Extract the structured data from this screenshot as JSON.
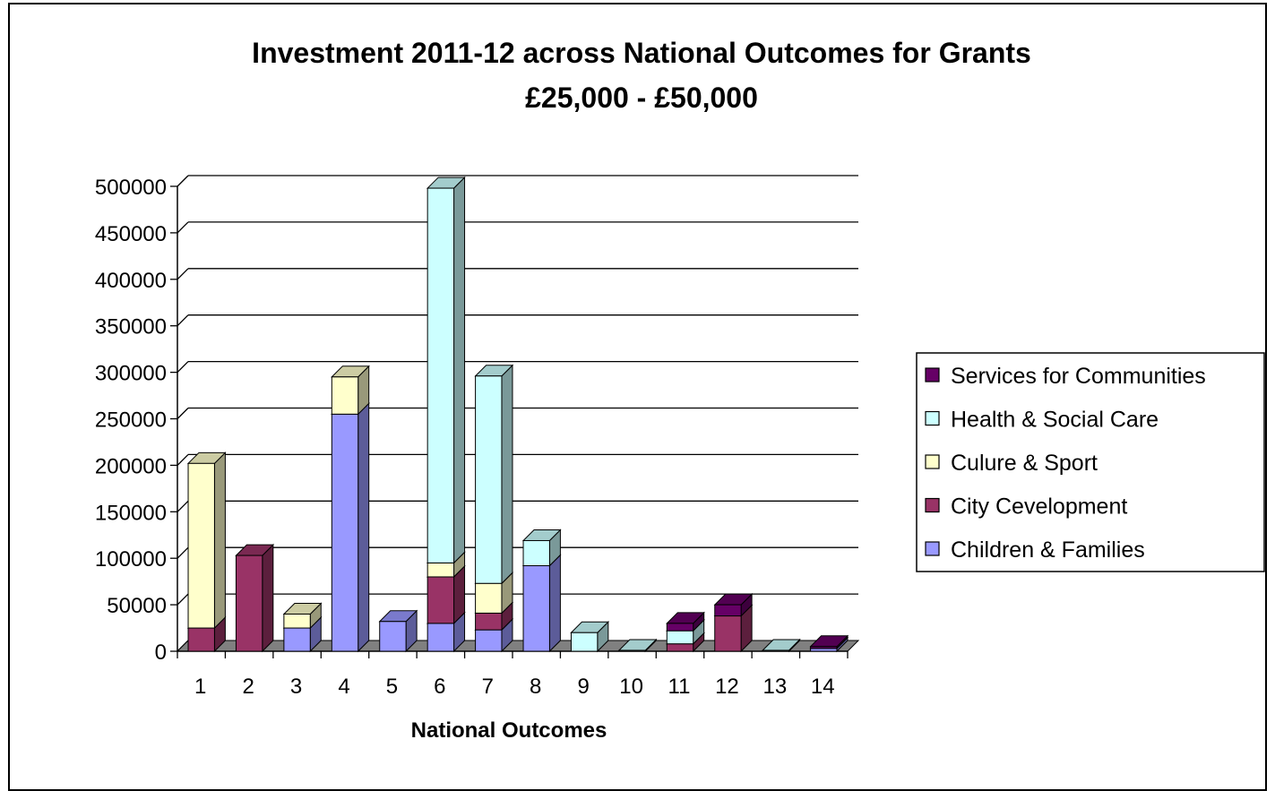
{
  "chart_data": {
    "type": "bar",
    "stacked": true,
    "three_d": true,
    "title_line1": "Investment 2011-12 across National Outcomes for Grants",
    "title_line2": "£25,000 - £50,000",
    "xlabel": "National Outcomes",
    "ylabel": "",
    "ylim": [
      0,
      500000
    ],
    "yticks": [
      0,
      50000,
      100000,
      150000,
      200000,
      250000,
      300000,
      350000,
      400000,
      450000,
      500000
    ],
    "grid": true,
    "legend_position": "right",
    "categories": [
      "1",
      "2",
      "3",
      "4",
      "5",
      "6",
      "7",
      "8",
      "9",
      "10",
      "11",
      "12",
      "13",
      "14"
    ],
    "series": [
      {
        "name": "Children & Families",
        "color": "#9999ff",
        "values": [
          0,
          0,
          25000,
          255000,
          32000,
          30000,
          23000,
          92000,
          0,
          0,
          0,
          0,
          0,
          3000
        ]
      },
      {
        "name": "City Cevelopment",
        "color": "#993366",
        "values": [
          25000,
          103000,
          0,
          0,
          0,
          50000,
          18000,
          0,
          0,
          0,
          8000,
          38000,
          0,
          0
        ]
      },
      {
        "name": "Culure & Sport",
        "color": "#ffffcc",
        "values": [
          177000,
          0,
          15000,
          40000,
          0,
          15000,
          32000,
          0,
          0,
          0,
          0,
          0,
          0,
          0
        ]
      },
      {
        "name": "Health & Social Care",
        "color": "#ccffff",
        "values": [
          0,
          0,
          0,
          0,
          0,
          403000,
          223000,
          27000,
          20000,
          1000,
          14000,
          0,
          1000,
          0
        ]
      },
      {
        "name": "Services for Communities",
        "color": "#660066",
        "values": [
          0,
          0,
          0,
          0,
          0,
          0,
          0,
          0,
          0,
          0,
          8000,
          12000,
          0,
          2000
        ]
      }
    ]
  }
}
